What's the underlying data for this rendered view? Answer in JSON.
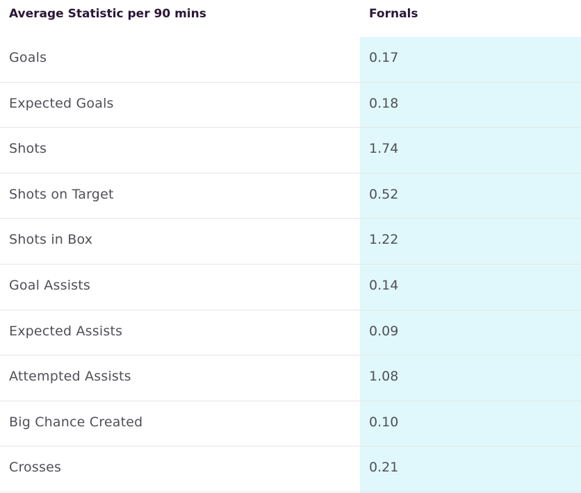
{
  "table": {
    "header_label": "Average Statistic per 90 mins",
    "player_name": "Fornals",
    "rows": [
      {
        "label": "Goals",
        "value": "0.17"
      },
      {
        "label": "Expected Goals",
        "value": "0.18"
      },
      {
        "label": "Shots",
        "value": "1.74"
      },
      {
        "label": "Shots on Target",
        "value": "0.52"
      },
      {
        "label": "Shots in Box",
        "value": "1.22"
      },
      {
        "label": "Goal Assists",
        "value": "0.14"
      },
      {
        "label": "Expected Assists",
        "value": "0.09"
      },
      {
        "label": "Attempted Assists",
        "value": "1.08"
      },
      {
        "label": "Big Chance Created",
        "value": "0.10"
      },
      {
        "label": "Crosses",
        "value": "0.21"
      }
    ]
  },
  "colors": {
    "highlight": "#e0f8fb",
    "header_text": "#2a1635",
    "body_text": "#4f4f56",
    "divider": "#e6e6e6"
  }
}
